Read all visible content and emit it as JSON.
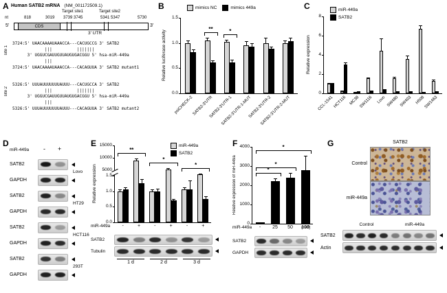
{
  "panels": {
    "A": "A",
    "B": "B",
    "C": "C",
    "D": "D",
    "E": "E",
    "F": "F",
    "G": "G"
  },
  "panelA": {
    "title": "Human SATB2 mRNA",
    "accession": "(NM_001172509.1)",
    "nt": "nt",
    "pos1": "818",
    "pos2": "3019",
    "target1_label": "Target site1",
    "target1_pos": "3739 3745",
    "target2_label": "Target site2",
    "target2_pos": "5341 5347",
    "pos_end": "5730",
    "five_prime": "5'",
    "three_prime": "3'",
    "cds_label": "CDS",
    "utr_label": "3' UTR",
    "site1_label": "site 1",
    "site2_label": "site 2",
    "site1_lines": [
      "3724:5' UAACAAAAUAAACCA---CACUGCCG 3' SATB2",
      "             |||          |||||||",
      "      3' UGGUCGAUUGUUAUGUGACGGU 5' hsa-miR-449a",
      "             |||",
      "3724:5' UAACAAAAUAAACCA---CACAGUUA 3' SATB2 mutant1"
    ],
    "site2_lines": [
      "5326:5' UUUAUUUUUUUAUUU---CACUGCCA 3' SATB2",
      "             |||          |||||||",
      "      3' UGGUCGAUUGUUAUGUGACGGU 5' hsa-miR-449a",
      "             |||",
      "5326:5' UUUAUUUUUUUAUUU---CACAGUUA 3' SATB2 mutant2"
    ]
  },
  "chart_data": [
    {
      "id": "B",
      "type": "bar",
      "ylabel": "Relative luciferase activity",
      "ylim": [
        0,
        1.5
      ],
      "yticks": [
        "0.0",
        "0.5",
        "1.0",
        "1.5"
      ],
      "categories": [
        "psiCHECK-2",
        "SATB2-3'UTR",
        "SATB2-3'UTR-1",
        "SATB2-3'UTR-1-MUT",
        "SATB2-3'UTR-2",
        "SATB2-3'UTR-2-MUT"
      ],
      "xlabel_rotation": true,
      "legend_position": "top",
      "series": [
        {
          "name": "mimics NC",
          "color": "#d6d6d6",
          "values": [
            1.0,
            1.05,
            1.02,
            0.95,
            1.0,
            1.0
          ],
          "errors": [
            0.05,
            0.05,
            0.05,
            0.08,
            0.1,
            0.05
          ]
        },
        {
          "name": "mimics 449a",
          "color": "#000000",
          "values": [
            0.82,
            0.62,
            0.62,
            0.93,
            0.88,
            1.03
          ],
          "errors": [
            0.05,
            0.04,
            0.05,
            0.06,
            0.05,
            0.08
          ]
        }
      ],
      "significance": [
        {
          "from": 1,
          "to": 1,
          "label": "**"
        },
        {
          "from": 2,
          "to": 2,
          "label": "*"
        }
      ]
    },
    {
      "id": "C",
      "type": "bar",
      "ylabel": "Relative expression",
      "ylim": [
        0,
        8
      ],
      "yticks": [
        "0",
        "2",
        "4",
        "6",
        "8"
      ],
      "categories": [
        "CCL-1541",
        "HCT116",
        "MC38",
        "SW1116",
        "Lovo",
        "SW480",
        "SW403",
        "H508",
        "SW1463"
      ],
      "xlabel_rotation": true,
      "legend_position": "top-left",
      "series": [
        {
          "name": "miR-449a",
          "color": "#d6d6d6",
          "values": [
            1.0,
            0.2,
            0.1,
            1.55,
            4.4,
            1.6,
            3.6,
            6.7,
            1.3
          ],
          "errors": [
            0.08,
            0.05,
            0.04,
            0.12,
            1.3,
            0.15,
            0.3,
            0.35,
            0.12
          ]
        },
        {
          "name": "SATB2",
          "color": "#000000",
          "values": [
            1.0,
            3.0,
            0.15,
            0.2,
            0.35,
            0.12,
            0.15,
            0.1,
            0.12
          ],
          "errors": [
            0.08,
            0.25,
            0.05,
            0.05,
            0.06,
            0.04,
            0.04,
            0.03,
            0.04
          ]
        }
      ]
    },
    {
      "id": "E",
      "type": "bar",
      "ylabel": "Relative expression",
      "x_axis_label": "miR-449a",
      "broken_axis": {
        "lower": [
          0,
          1.5
        ],
        "upper": [
          5000,
          15000
        ]
      },
      "yticks_lower": [
        "0.0",
        "0.5",
        "1.0",
        "1.5"
      ],
      "yticks_upper": [
        "5000",
        "10000",
        "15000"
      ],
      "categories": [
        "-",
        "+",
        "-",
        "+",
        "-",
        "+"
      ],
      "group_labels": [
        "1 d",
        "2 d",
        "3 d"
      ],
      "legend_position": "top-right",
      "series": [
        {
          "name": "miR-449a",
          "color": "#d6d6d6",
          "values": [
            1.0,
            8800,
            1.0,
            5200,
            1.05,
            1200
          ],
          "errors": [
            0.06,
            900,
            0.06,
            600,
            0.08,
            250
          ]
        },
        {
          "name": "SATB2",
          "color": "#000000",
          "values": [
            1.05,
            1.25,
            1.0,
            0.7,
            1.05,
            0.75
          ],
          "errors": [
            0.08,
            0.15,
            0.08,
            0.06,
            0.3,
            0.08
          ]
        }
      ],
      "significance": [
        {
          "from": 0,
          "to": 1,
          "label": "**"
        },
        {
          "from": 2,
          "to": 3,
          "label": "*"
        },
        {
          "from": 4,
          "to": 5,
          "label": "*"
        }
      ]
    },
    {
      "id": "F",
      "type": "bar",
      "ylabel": "Relative expression of miR-449a",
      "x_axis_label": "miR-449a",
      "x_axis_unit": "(nM)",
      "ylim": [
        0,
        4000
      ],
      "yticks": [
        "0",
        "1000",
        "2000",
        "3000",
        "4000"
      ],
      "categories": [
        "-",
        "25",
        "50",
        "100"
      ],
      "series": [
        {
          "name": "miR-449a",
          "color": "#000000",
          "values": [
            1.0,
            2200,
            2400,
            2800
          ],
          "errors": [
            0,
            160,
            260,
            750
          ]
        }
      ],
      "significance": [
        {
          "from": 0,
          "to": 1,
          "label": "*"
        },
        {
          "from": 0,
          "to": 2,
          "label": "*"
        },
        {
          "from": 0,
          "to": 3,
          "label": "*"
        }
      ]
    }
  ],
  "panelD": {
    "header": "miR-449a",
    "minus": "-",
    "plus": "+",
    "rows": [
      {
        "label": "SATB2",
        "lanes": [
          0.95,
          0.35
        ]
      },
      {
        "label": "GAPDH",
        "lanes": [
          0.9,
          0.88
        ]
      },
      {
        "label": "SATB2",
        "lanes": [
          0.9,
          0.4
        ]
      },
      {
        "label": "GAPDH",
        "lanes": [
          0.86,
          0.86
        ]
      },
      {
        "label": "SATB2",
        "lanes": [
          0.88,
          0.3
        ]
      },
      {
        "label": "GAPDH",
        "lanes": [
          0.9,
          0.85
        ]
      },
      {
        "label": "SATB2",
        "lanes": [
          0.8,
          0.45
        ]
      },
      {
        "label": "GAPDH",
        "lanes": [
          0.9,
          0.9
        ]
      }
    ],
    "cell_lines": [
      "Lovo",
      "HT29",
      "HCT116",
      "293T"
    ]
  },
  "panelE_blots": {
    "rows": [
      {
        "label": "SATB2",
        "lanes": [
          0.88,
          0.45,
          0.85,
          0.35,
          0.8,
          0.3
        ]
      },
      {
        "label": "Tubulin",
        "lanes": [
          0.85,
          0.85,
          0.85,
          0.85,
          0.85,
          0.85
        ]
      }
    ]
  },
  "panelF_blots": {
    "rows": [
      {
        "label": "SATB2",
        "lanes": [
          0.85,
          0.55,
          0.4,
          0.3
        ]
      },
      {
        "label": "GAPDH",
        "lanes": [
          0.85,
          0.85,
          0.85,
          0.85
        ]
      }
    ]
  },
  "panelG": {
    "ihc_title": "SATB2",
    "image_labels": [
      "Control",
      "miR-449a"
    ],
    "blot_header": [
      "Control",
      "miR-449a"
    ],
    "blots": [
      {
        "label": "SATB2",
        "lanes": [
          0.9,
          0.85,
          0.9,
          0.85,
          0.45,
          0.5,
          0.4,
          0.5
        ]
      },
      {
        "label": "Actin",
        "lanes": [
          0.85,
          0.85,
          0.85,
          0.85,
          0.85,
          0.85,
          0.85,
          0.85
        ]
      }
    ]
  }
}
